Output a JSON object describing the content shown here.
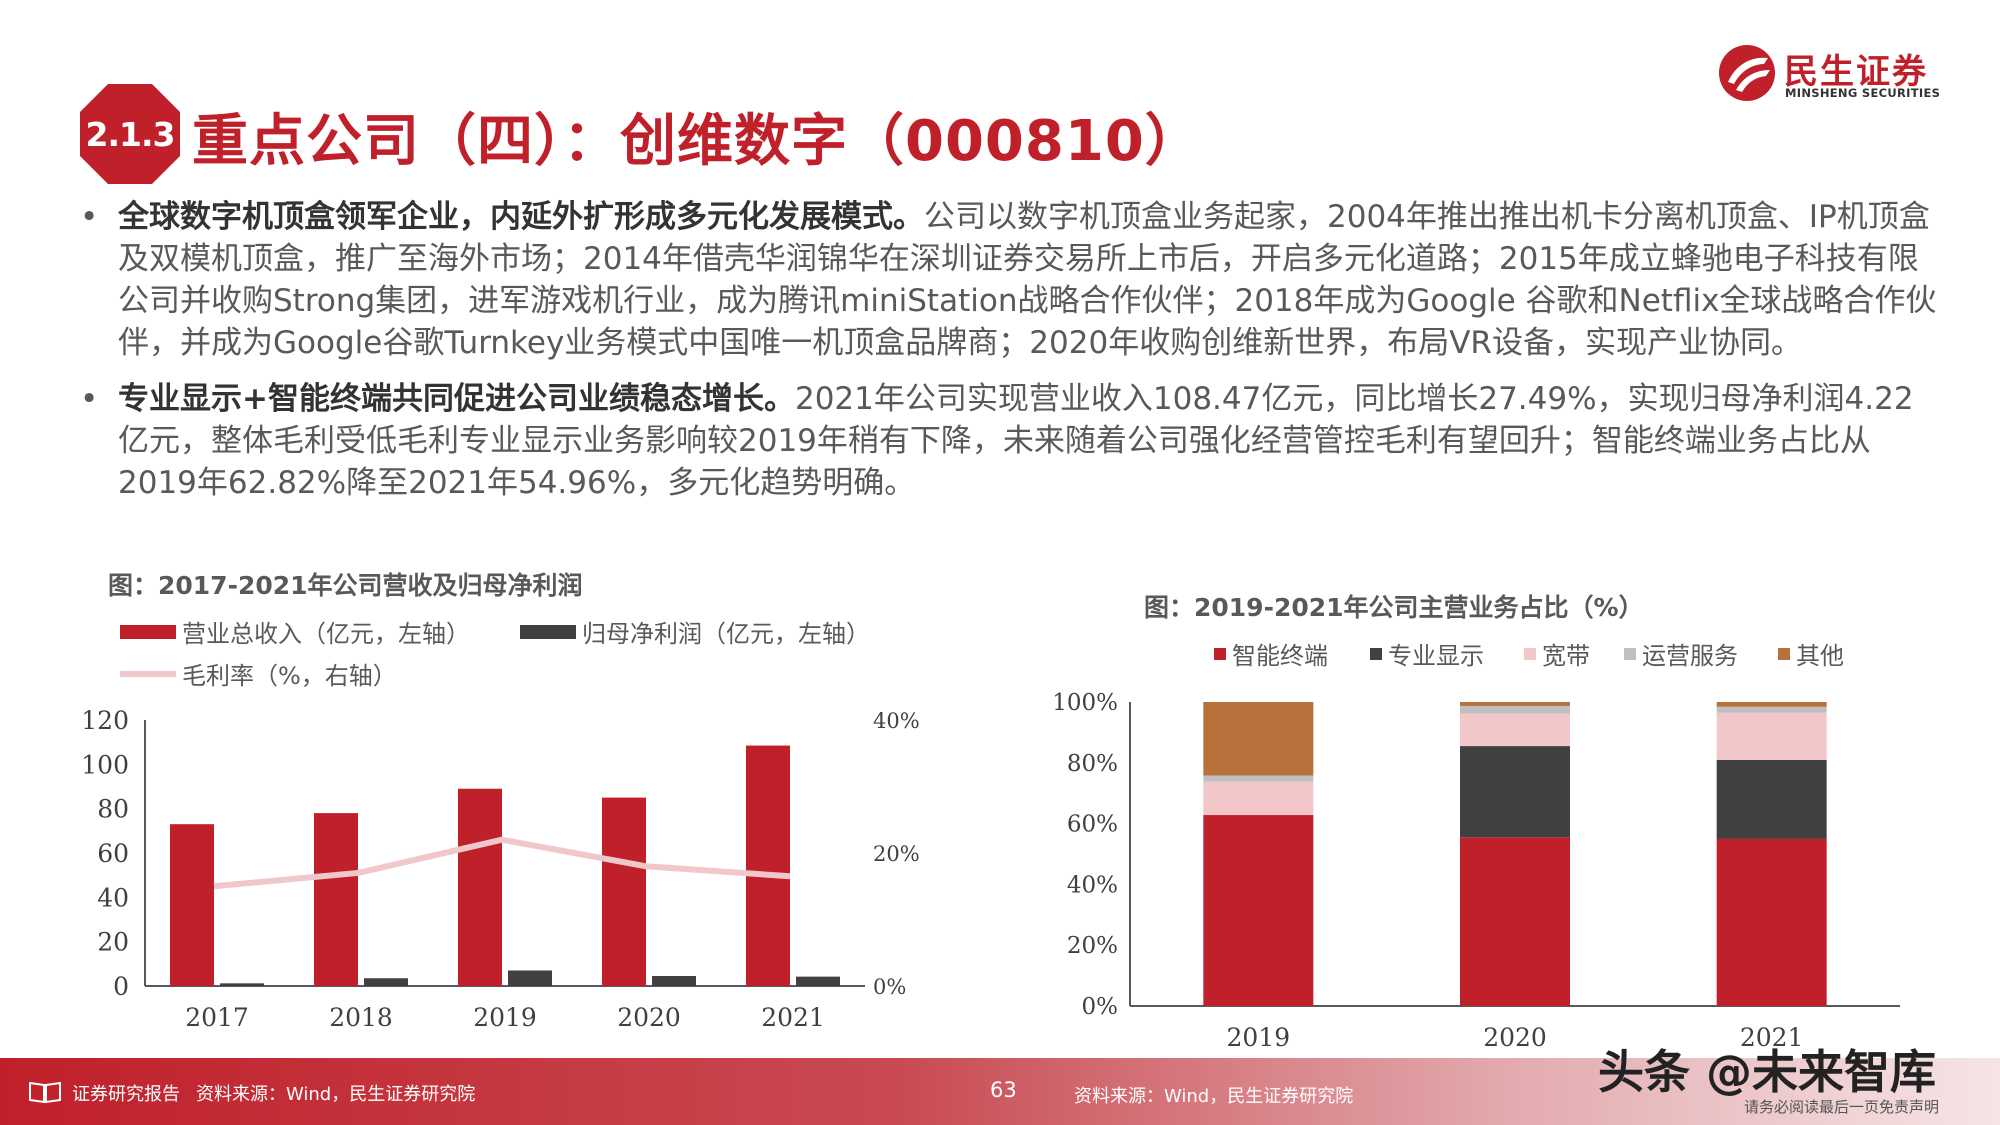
{
  "header": {
    "section": "2.1.3",
    "title": "重点公司（四）：创维数字（000810）"
  },
  "logo": {
    "name_cn": "民生证券",
    "name_en": "MINSHENG SECURITIES"
  },
  "bullets": [
    {
      "bold": "全球数字机顶盒领军企业，内延外扩形成多元化发展模式。",
      "text": "公司以数字机顶盒业务起家，2004年推出推出机卡分离机顶盒、IP机顶盒及双模机顶盒，推广至海外市场；2014年借壳华润锦华在深圳证券交易所上市后，开启多元化道路；2015年成立蜂驰电子科技有限公司并收购Strong集团，进军游戏机行业，成为腾讯miniStation战略合作伙伴；2018年成为Google 谷歌和Netflix全球战略合作伙伴，并成为Google谷歌Turnkey业务模式中国唯一机顶盒品牌商；2020年收购创维新世界，布局VR设备，实现产业协同。"
    },
    {
      "bold": "专业显示+智能终端共同促进公司业绩稳态增长。",
      "text": "2021年公司实现营业收入108.47亿元，同比增长27.49%，实现归母净利润4.22亿元，整体毛利受低毛利专业显示业务影响较2019年稍有下降，未来随着公司强化经营管控毛利有望回升；智能终端业务占比从2019年62.82%降至2021年54.96%，多元化趋势明确。"
    }
  ],
  "chart_data": [
    {
      "type": "bar",
      "title": "图：2017-2021年公司营收及归母净利润",
      "categories": [
        "2017",
        "2018",
        "2019",
        "2020",
        "2021"
      ],
      "series": [
        {
          "name": "营业总收入（亿元，左轴）",
          "kind": "bar",
          "axis": "left",
          "color": "#c0202a",
          "values": [
            73,
            78,
            89,
            85,
            108.47
          ]
        },
        {
          "name": "归母净利润（亿元，左轴）",
          "kind": "bar",
          "axis": "left",
          "color": "#404040",
          "values": [
            1.2,
            3.5,
            7.0,
            4.5,
            4.22
          ]
        },
        {
          "name": "毛利率（%，右轴）",
          "kind": "line",
          "axis": "right",
          "color": "#f0c8cb",
          "values": [
            15,
            17,
            22,
            18,
            16.5
          ]
        }
      ],
      "y_left": {
        "ticks": [
          "0",
          "20",
          "40",
          "60",
          "80",
          "100",
          "120"
        ],
        "min": 0,
        "max": 120
      },
      "y_right": {
        "ticks": [
          "0%",
          "20%",
          "40%"
        ],
        "min": 0,
        "max": 40
      }
    },
    {
      "type": "bar",
      "stacked": true,
      "title": "图：2019-2021年公司主营业务占比（%）",
      "categories": [
        "2019",
        "2020",
        "2021"
      ],
      "series": [
        {
          "name": "智能终端",
          "color": "#c0202a",
          "values": [
            62.82,
            55.5,
            54.96
          ]
        },
        {
          "name": "专业显示",
          "color": "#404040",
          "values": [
            0,
            30.0,
            26.0
          ]
        },
        {
          "name": "宽带",
          "color": "#f2c7c9",
          "values": [
            11.0,
            10.7,
            15.5
          ]
        },
        {
          "name": "运营服务",
          "color": "#bfbfbf",
          "values": [
            2.0,
            2.5,
            2.0
          ]
        },
        {
          "name": "其他",
          "color": "#b8713a",
          "values": [
            24.18,
            1.3,
            1.54
          ]
        }
      ],
      "y": {
        "ticks": [
          "0%",
          "20%",
          "40%",
          "60%",
          "80%",
          "100%"
        ],
        "min": 0,
        "max": 100
      }
    }
  ],
  "footer": {
    "report_label": "证券研究报告",
    "source_left": "资料来源：Wind，民生证券研究院",
    "page_number": "63",
    "source_right": "资料来源：Wind，民生证券研究院",
    "disclaimer": "请务必阅读最后一页免责声明",
    "watermark": "头条 @未来智库"
  }
}
